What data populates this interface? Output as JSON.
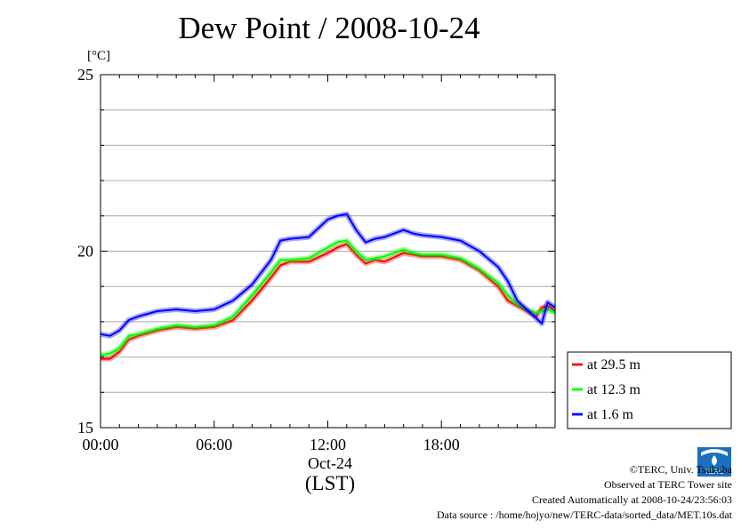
{
  "title": "Dew Point / 2008-10-24",
  "chart_data": {
    "type": "line",
    "title": "Dew Point / 2008-10-24",
    "ylabel": "[°C]",
    "xlabel": "(LST)",
    "x_date_label": "Oct-24",
    "xlim": [
      0,
      24
    ],
    "ylim": [
      15,
      25
    ],
    "y_ticks": [
      "15",
      "20",
      "25"
    ],
    "x_ticks": [
      "00:00",
      "06:00",
      "12:00",
      "18:00"
    ],
    "grid": true,
    "legend_position": "right",
    "x": [
      0,
      0.5,
      1,
      1.5,
      2,
      3,
      4,
      5,
      6,
      7,
      8,
      9,
      9.5,
      10,
      11,
      12,
      12.5,
      13,
      13.5,
      14,
      14.5,
      15,
      16,
      16.5,
      17,
      18,
      19,
      20,
      21,
      21.5,
      22,
      22.5,
      23,
      23.3,
      23.6,
      24
    ],
    "series": [
      {
        "name": "at 29.5 m",
        "color": "#ff0000",
        "values": [
          16.95,
          16.95,
          17.15,
          17.5,
          17.6,
          17.75,
          17.85,
          17.8,
          17.85,
          18.05,
          18.6,
          19.25,
          19.6,
          19.7,
          19.7,
          19.95,
          20.1,
          20.2,
          19.9,
          19.65,
          19.75,
          19.7,
          19.95,
          19.9,
          19.85,
          19.85,
          19.75,
          19.45,
          19.0,
          18.6,
          18.45,
          18.3,
          18.15,
          18.4,
          18.45,
          18.3
        ]
      },
      {
        "name": "at 12.3 m",
        "color": "#00ff00",
        "values": [
          17.05,
          17.1,
          17.25,
          17.6,
          17.65,
          17.8,
          17.9,
          17.85,
          17.9,
          18.15,
          18.75,
          19.4,
          19.75,
          19.75,
          19.8,
          20.1,
          20.25,
          20.3,
          20.0,
          19.75,
          19.8,
          19.85,
          20.05,
          19.95,
          19.9,
          19.9,
          19.8,
          19.5,
          19.1,
          18.75,
          18.5,
          18.35,
          18.25,
          18.3,
          18.35,
          18.25
        ]
      },
      {
        "name": "at 1.6 m",
        "color": "#0000ff",
        "values": [
          17.65,
          17.6,
          17.75,
          18.05,
          18.15,
          18.3,
          18.35,
          18.3,
          18.35,
          18.6,
          19.05,
          19.75,
          20.3,
          20.35,
          20.4,
          20.9,
          21.0,
          21.05,
          20.6,
          20.25,
          20.35,
          20.4,
          20.6,
          20.5,
          20.45,
          20.4,
          20.3,
          20.0,
          19.55,
          19.15,
          18.6,
          18.35,
          18.1,
          17.95,
          18.55,
          18.4
        ]
      }
    ]
  },
  "axis_label_unit": "[°C]",
  "date_label": "Oct-24",
  "tz_label": "(LST)",
  "credits": {
    "line1": "©TERC, Univ. Tsukuba",
    "line2": "Observed at TERC Tower site",
    "line3": "Created Automatically at 2008-10-24/23:56:03",
    "line4": "Data source : /home/hojyo/new/TERC-data/sorted_data/MET.10s.dat"
  },
  "logo_text": "TERC"
}
